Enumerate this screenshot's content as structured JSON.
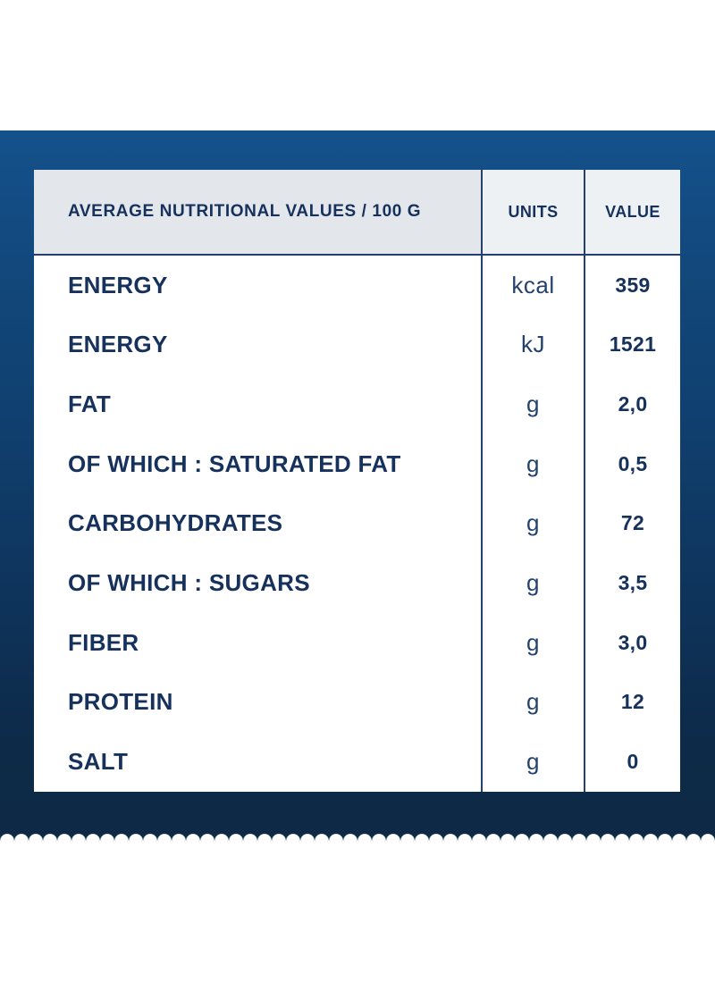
{
  "colors": {
    "banner_top": "#14518b",
    "banner_bottom": "#0d2945",
    "card_bg": "#ffffff",
    "header_main_bg": "#e3e7eb",
    "header_sub_bg": "#eef1f4",
    "grid_line": "#24406c",
    "text_navy": "#16315c"
  },
  "table": {
    "header": [
      {
        "label": "AVERAGE NUTRITIONAL VALUES / 100 G"
      },
      {
        "label": "UNITS"
      },
      {
        "label": "VALUE"
      }
    ],
    "rows": [
      {
        "label": "ENERGY",
        "unit": "kcal",
        "value": "359"
      },
      {
        "label": "ENERGY",
        "unit": "kJ",
        "value": "1521"
      },
      {
        "label": "FAT",
        "unit": "g",
        "value": "2,0"
      },
      {
        "label": "OF WHICH : SATURATED FAT",
        "unit": "g",
        "value": "0,5"
      },
      {
        "label": "CARBOHYDRATES",
        "unit": "g",
        "value": "72"
      },
      {
        "label": "OF WHICH : SUGARS",
        "unit": "g",
        "value": "3,5"
      },
      {
        "label": "FIBER",
        "unit": "g",
        "value": "3,0"
      },
      {
        "label": "PROTEIN",
        "unit": "g",
        "value": "12"
      },
      {
        "label": "SALT",
        "unit": "g",
        "value": "0"
      }
    ]
  }
}
